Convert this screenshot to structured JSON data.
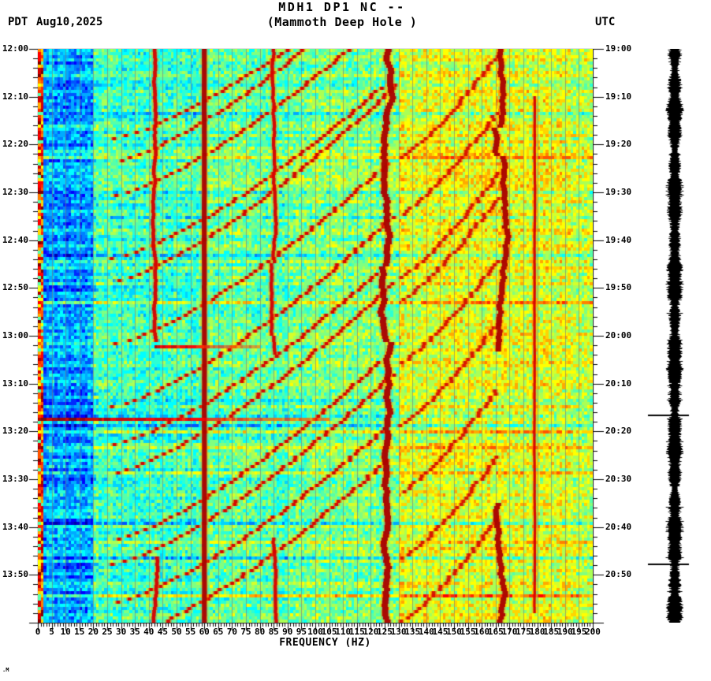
{
  "header": {
    "tz_left": "PDT",
    "date": "Aug10,2025",
    "title_line1": "MDH1 DP1 NC --",
    "title_line2": "(Mammoth Deep Hole )",
    "tz_right": "UTC"
  },
  "footer_mark": ".M",
  "chart_data": {
    "type": "heatmap",
    "subtype": "seismic-spectrogram",
    "title": "MDH1 DP1 NC -- (Mammoth Deep Hole )",
    "station": "MDH1 DP1 NC",
    "station_description": "Mammoth Deep Hole",
    "date_label": "Aug10,2025",
    "xlabel": "FREQUENCY (HZ)",
    "x_range_hz": [
      0,
      200
    ],
    "x_major_tick_step_hz": 5,
    "x_minor_tick_step_hz": 1,
    "freq_tick_labels": [
      "0",
      "5",
      "10",
      "15",
      "20",
      "25",
      "30",
      "35",
      "40",
      "45",
      "50",
      "55",
      "60",
      "65",
      "70",
      "75",
      "80",
      "85",
      "90",
      "95",
      "100",
      "105",
      "110",
      "115",
      "120",
      "125",
      "130",
      "135",
      "140",
      "145",
      "150",
      "155",
      "160",
      "165",
      "170",
      "175",
      "180",
      "185",
      "190",
      "195",
      "200"
    ],
    "left_timezone": "PDT",
    "right_timezone": "UTC",
    "left_time_labels": [
      "12:00",
      "12:10",
      "12:20",
      "12:30",
      "12:40",
      "12:50",
      "13:00",
      "13:10",
      "13:20",
      "13:30",
      "13:40",
      "13:50"
    ],
    "right_time_labels": [
      "19:00",
      "19:10",
      "19:20",
      "19:30",
      "19:40",
      "19:50",
      "20:00",
      "20:10",
      "20:20",
      "20:30",
      "20:40",
      "20:50"
    ],
    "time_major_tick_min": 10,
    "time_minor_tick_min": 2,
    "duration_min": 120,
    "colormap": "jet",
    "grid": true,
    "colors": {
      "plot_border": "#000000",
      "gridline": "#7a7a7a",
      "line_dark_red": "#8b0000",
      "trace_color": "#000000",
      "page_background": "#ffffff"
    },
    "background_bands": [
      {
        "f_from_hz": 0,
        "f_to_hz": 1.6,
        "level": 0.8,
        "comment": "hot red edge"
      },
      {
        "f_from_hz": 1.6,
        "f_to_hz": 20,
        "level": 0.29,
        "comment": "blue low-frequency band"
      },
      {
        "f_from_hz": 20,
        "f_to_hz": 60,
        "level": 0.44,
        "comment": "cyan"
      },
      {
        "f_from_hz": 60,
        "f_to_hz": 95,
        "level": 0.475,
        "comment": "cyan-green"
      },
      {
        "f_from_hz": 95,
        "f_to_hz": 130,
        "level": 0.5,
        "comment": "green"
      },
      {
        "f_from_hz": 130,
        "f_to_hz": 193,
        "level": 0.6,
        "comment": "yellow-green"
      },
      {
        "f_from_hz": 193,
        "f_to_hz": 200,
        "level": 0.565,
        "comment": "right edge greener"
      }
    ],
    "spectral_lines": [
      {
        "f_hz": 42,
        "width_hz": 0.9,
        "wander_hz": 1.6,
        "segments_min": [
          [
            0,
            61
          ],
          [
            106,
            120
          ]
        ],
        "level": 0.93
      },
      {
        "f_hz": 60,
        "width_hz": 1.3,
        "wander_hz": 0.1,
        "segments_min": [
          [
            0,
            120
          ]
        ],
        "level": 0.97
      },
      {
        "f_hz": 85,
        "width_hz": 0.8,
        "wander_hz": 1.4,
        "segments_min": [
          [
            0,
            64
          ],
          [
            102,
            120
          ]
        ],
        "level": 0.92
      },
      {
        "f_hz": 126,
        "width_hz": 1.8,
        "wander_hz": 3.2,
        "segments_min": [
          [
            0,
            120
          ]
        ],
        "level": 0.95
      },
      {
        "f_hz": 167,
        "width_hz": 1.6,
        "wander_hz": 3.0,
        "segments_min": [
          [
            0,
            63
          ],
          [
            95,
            120
          ]
        ],
        "level": 0.94
      },
      {
        "f_hz": 179,
        "width_hz": 0.5,
        "wander_hz": 0.2,
        "segments_min": [
          [
            10,
            118
          ]
        ],
        "level": 0.9
      }
    ],
    "glides": [
      {
        "t_end_min": 19,
        "f_end_hz": 25,
        "f_top_hz": 128,
        "dur_min": 36
      },
      {
        "t_end_min": 24,
        "f_end_hz": 25,
        "f_top_hz": 132,
        "dur_min": 42
      },
      {
        "t_end_min": 31,
        "f_end_hz": 25,
        "f_top_hz": 126,
        "dur_min": 38
      },
      {
        "t_end_min": 44,
        "f_end_hz": 25,
        "f_top_hz": 124,
        "dur_min": 36
      },
      {
        "t_end_min": 49,
        "f_end_hz": 25,
        "f_top_hz": 130,
        "dur_min": 42
      },
      {
        "t_end_min": 62,
        "f_end_hz": 25,
        "f_top_hz": 126,
        "dur_min": 38
      },
      {
        "t_end_min": 75,
        "f_end_hz": 25,
        "f_top_hz": 128,
        "dur_min": 40
      },
      {
        "t_end_min": 83,
        "f_end_hz": 25,
        "f_top_hz": 122,
        "dur_min": 36
      },
      {
        "t_end_min": 89,
        "f_end_hz": 25,
        "f_top_hz": 128,
        "dur_min": 40
      },
      {
        "t_end_min": 103,
        "f_end_hz": 25,
        "f_top_hz": 124,
        "dur_min": 38
      },
      {
        "t_end_min": 108,
        "f_end_hz": 25,
        "f_top_hz": 128,
        "dur_min": 40
      },
      {
        "t_end_min": 116,
        "f_end_hz": 25,
        "f_top_hz": 124,
        "dur_min": 36
      },
      {
        "t_end_min": 124,
        "f_end_hz": 25,
        "f_top_hz": 126,
        "dur_min": 38
      }
    ],
    "upper_glides": [
      {
        "t_end_min": 23,
        "f_end_hz": 130,
        "f_top_hz": 166,
        "dur_min": 22
      },
      {
        "t_end_min": 35,
        "f_end_hz": 130,
        "f_top_hz": 166,
        "dur_min": 22
      },
      {
        "t_end_min": 48,
        "f_end_hz": 130,
        "f_top_hz": 166,
        "dur_min": 22
      },
      {
        "t_end_min": 53,
        "f_end_hz": 130,
        "f_top_hz": 166,
        "dur_min": 22
      },
      {
        "t_end_min": 66,
        "f_end_hz": 130,
        "f_top_hz": 166,
        "dur_min": 22
      },
      {
        "t_end_min": 79,
        "f_end_hz": 130,
        "f_top_hz": 166,
        "dur_min": 22
      },
      {
        "t_end_min": 93,
        "f_end_hz": 130,
        "f_top_hz": 166,
        "dur_min": 22
      },
      {
        "t_end_min": 107,
        "f_end_hz": 130,
        "f_top_hz": 166,
        "dur_min": 22
      },
      {
        "t_end_min": 120,
        "f_end_hz": 130,
        "f_top_hz": 166,
        "dur_min": 22
      }
    ],
    "event_lines": [
      {
        "time_min": 77,
        "f_from_hz": 0,
        "f_to_hz": 105,
        "level": 0.97
      },
      {
        "time_min": 62,
        "f_from_hz": 42,
        "f_to_hz": 80,
        "level": 0.93
      }
    ],
    "seismogram": {
      "clipped": true,
      "color": "#000000",
      "event_marks_min": [
        76.5,
        107.6
      ]
    }
  }
}
